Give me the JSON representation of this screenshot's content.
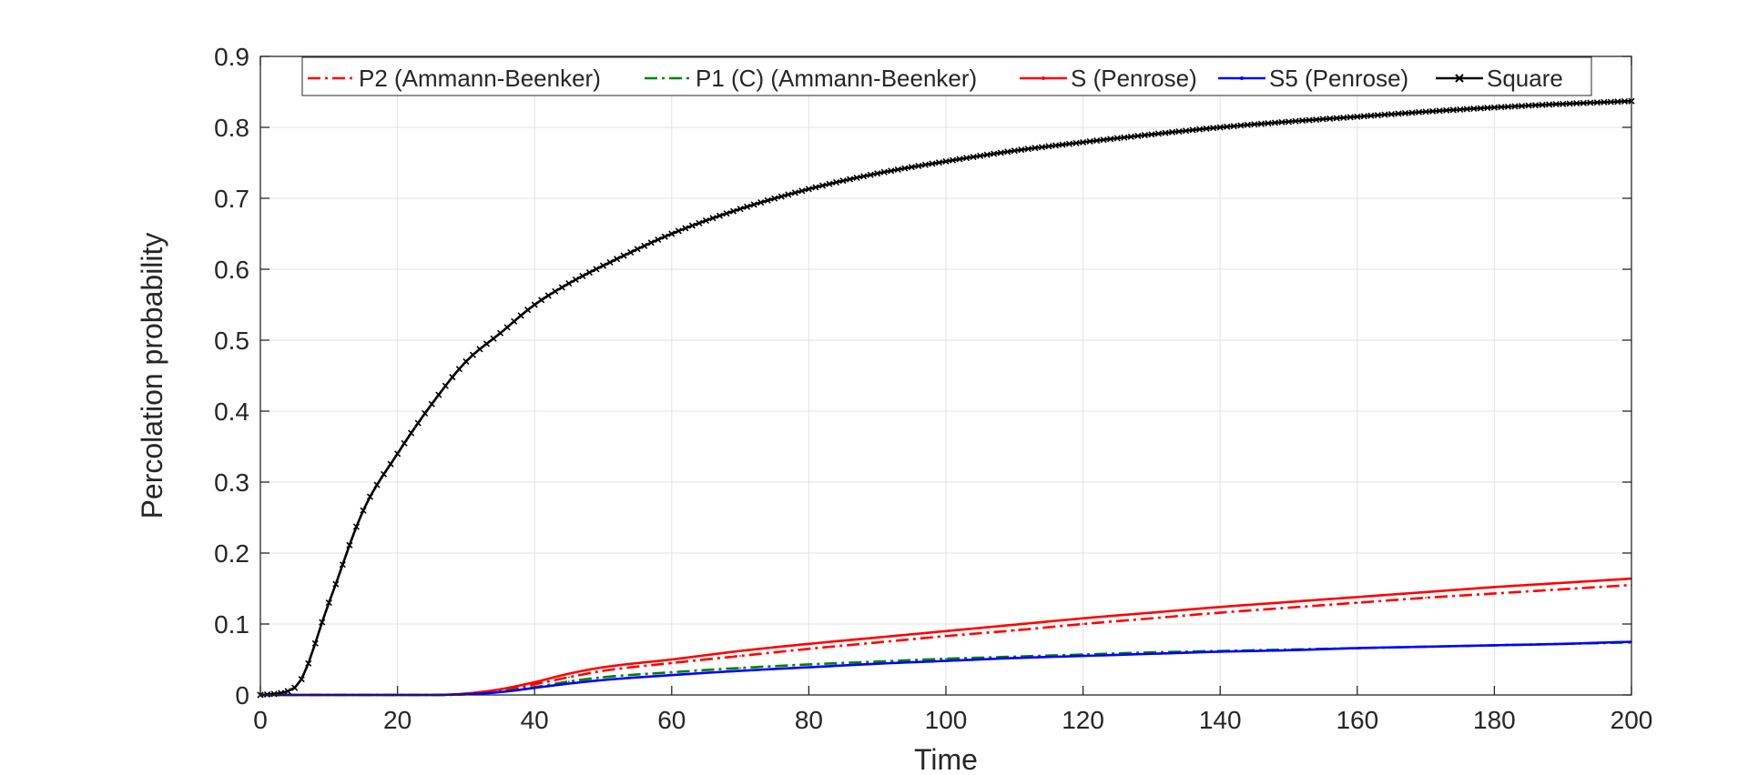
{
  "chart_data": {
    "type": "line",
    "title": "",
    "xlabel": "Time",
    "ylabel": "Percolation probability",
    "xlim": [
      0,
      200
    ],
    "ylim": [
      0,
      0.9
    ],
    "xticks": [
      0,
      20,
      40,
      60,
      80,
      100,
      120,
      140,
      160,
      180,
      200
    ],
    "yticks": [
      0,
      0.1,
      0.2,
      0.3,
      0.4,
      0.5,
      0.6,
      0.7,
      0.8,
      0.9
    ],
    "xtick_labels": [
      "0",
      "20",
      "40",
      "60",
      "80",
      "100",
      "120",
      "140",
      "160",
      "180",
      "200"
    ],
    "ytick_labels": [
      "0",
      "0.1",
      "0.2",
      "0.3",
      "0.4",
      "0.5",
      "0.6",
      "0.7",
      "0.8",
      "0.9"
    ],
    "grid": true,
    "legend_position": "top, horizontal",
    "x": [
      0,
      5,
      10,
      15,
      20,
      25,
      30,
      35,
      40,
      45,
      50,
      60,
      70,
      80,
      90,
      100,
      110,
      120,
      130,
      140,
      150,
      160,
      170,
      180,
      190,
      200
    ],
    "series": [
      {
        "name": "P2 (Ammann-Beenker)",
        "color": "#ff0000",
        "dash": "dashdot",
        "marker": "none",
        "values": [
          0,
          0,
          0,
          0,
          0,
          0,
          0.001,
          0.006,
          0.015,
          0.025,
          0.034,
          0.045,
          0.055,
          0.065,
          0.074,
          0.083,
          0.091,
          0.1,
          0.108,
          0.116,
          0.123,
          0.13,
          0.137,
          0.143,
          0.149,
          0.155
        ]
      },
      {
        "name": "P1 (C) (Ammann-Beenker)",
        "color": "#008000",
        "dash": "dashdot",
        "marker": "none",
        "values": [
          0,
          0,
          0,
          0,
          0,
          0,
          0.001,
          0.005,
          0.011,
          0.019,
          0.025,
          0.032,
          0.038,
          0.043,
          0.047,
          0.051,
          0.054,
          0.057,
          0.06,
          0.062,
          0.064,
          0.066,
          0.068,
          0.07,
          0.072,
          0.074
        ]
      },
      {
        "name": "S (Penrose)",
        "color": "#ff0000",
        "dash": "solid",
        "marker": "point",
        "values": [
          0,
          0,
          0,
          0,
          0,
          0,
          0.002,
          0.008,
          0.018,
          0.03,
          0.039,
          0.05,
          0.062,
          0.072,
          0.081,
          0.09,
          0.099,
          0.108,
          0.116,
          0.124,
          0.131,
          0.138,
          0.145,
          0.152,
          0.158,
          0.164
        ]
      },
      {
        "name": "S5 (Penrose)",
        "color": "#0000ff",
        "dash": "solid",
        "marker": "point",
        "values": [
          0,
          0,
          0,
          0,
          0,
          0,
          0.001,
          0.004,
          0.01,
          0.016,
          0.021,
          0.028,
          0.034,
          0.039,
          0.044,
          0.048,
          0.052,
          0.055,
          0.058,
          0.061,
          0.063,
          0.066,
          0.068,
          0.07,
          0.072,
          0.075
        ]
      },
      {
        "name": "Square",
        "color": "#000000",
        "dash": "solid",
        "marker": "x",
        "values": [
          0,
          0.01,
          0.13,
          0.26,
          0.34,
          0.41,
          0.47,
          0.51,
          0.55,
          0.58,
          0.605,
          0.65,
          0.685,
          0.713,
          0.735,
          0.752,
          0.767,
          0.779,
          0.79,
          0.8,
          0.808,
          0.815,
          0.822,
          0.828,
          0.833,
          0.837
        ]
      }
    ]
  }
}
